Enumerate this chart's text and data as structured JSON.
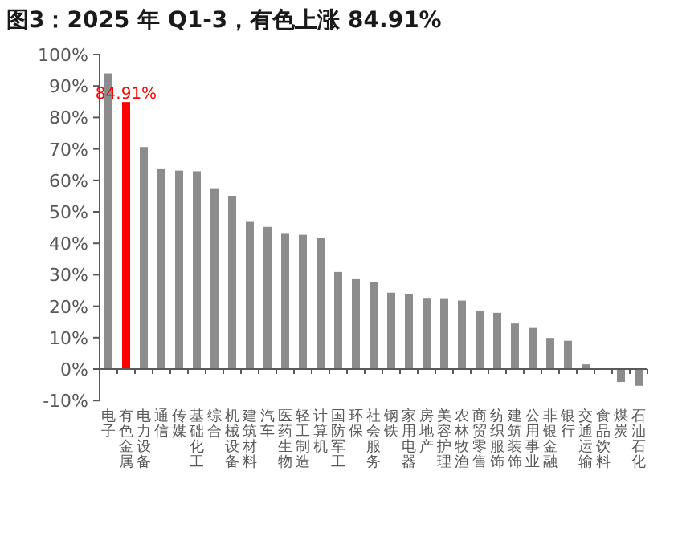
{
  "chart_data": {
    "type": "bar",
    "title": "图3：2025 年 Q1-3，有色上涨 84.91%",
    "categories": [
      "电子",
      "有色金属",
      "电力设备",
      "通信",
      "传媒",
      "基础化工",
      "综合",
      "机械设备",
      "建筑材料",
      "汽车",
      "医药生物",
      "轻工制造",
      "计算机",
      "国防军工",
      "环保",
      "社会服务",
      "钢铁",
      "家用电器",
      "房地产",
      "美容护理",
      "农林牧渔",
      "商贸零售",
      "纺织服饰",
      "建筑装饰",
      "公用事业",
      "非银金融",
      "银行",
      "交通运输",
      "食品饮料",
      "煤炭",
      "石油石化"
    ],
    "values": [
      94.0,
      84.91,
      70.6,
      63.8,
      63.1,
      62.9,
      57.5,
      55.1,
      46.8,
      45.2,
      43.0,
      42.7,
      41.7,
      30.9,
      28.6,
      27.6,
      24.3,
      23.8,
      22.4,
      22.3,
      21.8,
      18.4,
      17.9,
      14.5,
      13.1,
      9.9,
      9.0,
      1.5,
      null,
      -4.1,
      -5.3
    ],
    "colors": [
      "#8c8c8c",
      "#ff0000",
      "#8c8c8c",
      "#8c8c8c",
      "#8c8c8c",
      "#8c8c8c",
      "#8c8c8c",
      "#8c8c8c",
      "#8c8c8c",
      "#8c8c8c",
      "#8c8c8c",
      "#8c8c8c",
      "#8c8c8c",
      "#8c8c8c",
      "#8c8c8c",
      "#8c8c8c",
      "#8c8c8c",
      "#8c8c8c",
      "#8c8c8c",
      "#8c8c8c",
      "#8c8c8c",
      "#8c8c8c",
      "#8c8c8c",
      "#8c8c8c",
      "#8c8c8c",
      "#8c8c8c",
      "#8c8c8c",
      "#8c8c8c",
      null,
      "#8c8c8c",
      "#8c8c8c"
    ],
    "value_labels": [
      null,
      "84.91%",
      null,
      null,
      null,
      null,
      null,
      null,
      null,
      null,
      null,
      null,
      null,
      null,
      null,
      null,
      null,
      null,
      null,
      null,
      null,
      null,
      null,
      null,
      null,
      null,
      null,
      null,
      null,
      null,
      null
    ],
    "ylim": [
      -10,
      100
    ],
    "yticks": [
      {
        "value": -10,
        "label": "-10%"
      },
      {
        "value": 0,
        "label": "0%"
      },
      {
        "value": 10,
        "label": "10%"
      },
      {
        "value": 20,
        "label": "20%"
      },
      {
        "value": 30,
        "label": "30%"
      },
      {
        "value": 40,
        "label": "40%"
      },
      {
        "value": 50,
        "label": "50%"
      },
      {
        "value": 60,
        "label": "60%"
      },
      {
        "value": 70,
        "label": "70%"
      },
      {
        "value": 80,
        "label": "80%"
      },
      {
        "value": 90,
        "label": "90%"
      },
      {
        "value": 100,
        "label": "100%"
      }
    ]
  }
}
